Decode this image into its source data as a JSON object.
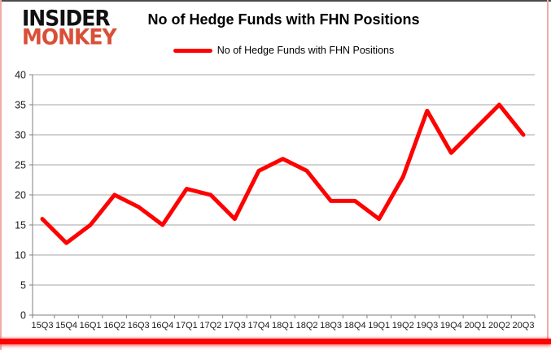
{
  "logo": {
    "line1": "INSIDER",
    "line2": "MONKEY"
  },
  "header": {
    "title": "No of Hedge Funds with FHN Positions"
  },
  "legend": {
    "label": "No of Hedge Funds with FHN Positions"
  },
  "colors": {
    "series_line": "#fe0101",
    "logo_accent": "#d94f38",
    "logo_text": "#111111",
    "gridline": "#a6a6a6",
    "axis": "#7f7f7f",
    "tick_label": "#1a1a1a",
    "bottom_bar": "#fb0303",
    "side_border": "#f2a9a9",
    "top_border": "#4a4a4a"
  },
  "chart_data": {
    "type": "line",
    "title": "No of Hedge Funds with FHN Positions",
    "categories": [
      "15Q3",
      "15Q4",
      "16Q1",
      "16Q2",
      "16Q3",
      "16Q4",
      "17Q1",
      "17Q2",
      "17Q3",
      "17Q4",
      "18Q1",
      "18Q2",
      "18Q3",
      "18Q4",
      "19Q1",
      "19Q2",
      "19Q3",
      "19Q4",
      "20Q1",
      "20Q2",
      "20Q3"
    ],
    "series": [
      {
        "name": "No of Hedge Funds with FHN Positions",
        "color": "#fe0101",
        "values": [
          16,
          12,
          15,
          20,
          18,
          15,
          21,
          20,
          16,
          24,
          26,
          24,
          19,
          19,
          16,
          23,
          34,
          27,
          31,
          35,
          30
        ]
      }
    ],
    "xlabel": "",
    "ylabel": "",
    "ylim": [
      0,
      40
    ],
    "yticks": [
      0,
      5,
      10,
      15,
      20,
      25,
      30,
      35,
      40
    ],
    "grid": true,
    "legend_position": "top-center"
  }
}
